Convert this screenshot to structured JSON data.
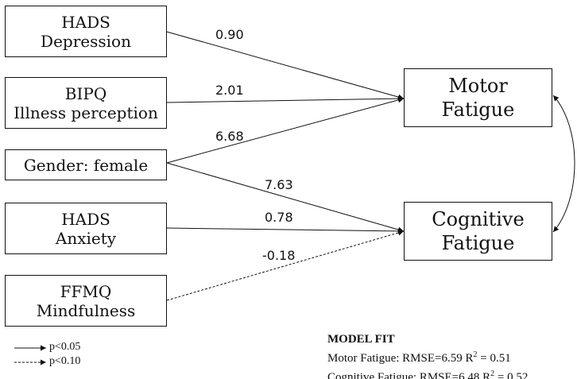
{
  "predictors": {
    "hads_depression": [
      "HADS",
      "Depression"
    ],
    "bipq": [
      "BIPQ",
      "Illness perception"
    ],
    "gender": [
      "Gender: female"
    ],
    "hads_anxiety": [
      "HADS",
      "Anxiety"
    ],
    "ffmq": [
      "FFMQ",
      "Mindfulness"
    ]
  },
  "outcomes": {
    "motor": [
      "Motor",
      "Fatigue"
    ],
    "cognitive": [
      "Cognitive",
      "Fatigue"
    ]
  },
  "paths": [
    {
      "from": "HADS Depression",
      "to": "Motor Fatigue",
      "coef": "0.90",
      "sig": "p<0.05"
    },
    {
      "from": "BIPQ Illness perception",
      "to": "Motor Fatigue",
      "coef": "2.01",
      "sig": "p<0.05"
    },
    {
      "from": "Gender: female",
      "to": "Motor Fatigue",
      "coef": "6.68",
      "sig": "p<0.05"
    },
    {
      "from": "Gender: female",
      "to": "Cognitive Fatigue",
      "coef": "7.63",
      "sig": "p<0.05"
    },
    {
      "from": "HADS Anxiety",
      "to": "Cognitive Fatigue",
      "coef": "0.78",
      "sig": "p<0.05"
    },
    {
      "from": "FFMQ Mindfulness",
      "to": "Cognitive Fatigue",
      "coef": "-0.18",
      "sig": "p<0.10"
    }
  ],
  "legend": {
    "solid": "p<0.05",
    "dashed": "p<0.10"
  },
  "model_fit": {
    "title": "MODEL FIT",
    "motor_prefix": "Motor Fatigue: RMSE=6.59 R",
    "motor_suffix": " = 0.51",
    "cognitive_prefix": "Cognitive Fatigue: RMSE=6.48 R",
    "cognitive_suffix": " = 0.52",
    "superscript": "2"
  }
}
